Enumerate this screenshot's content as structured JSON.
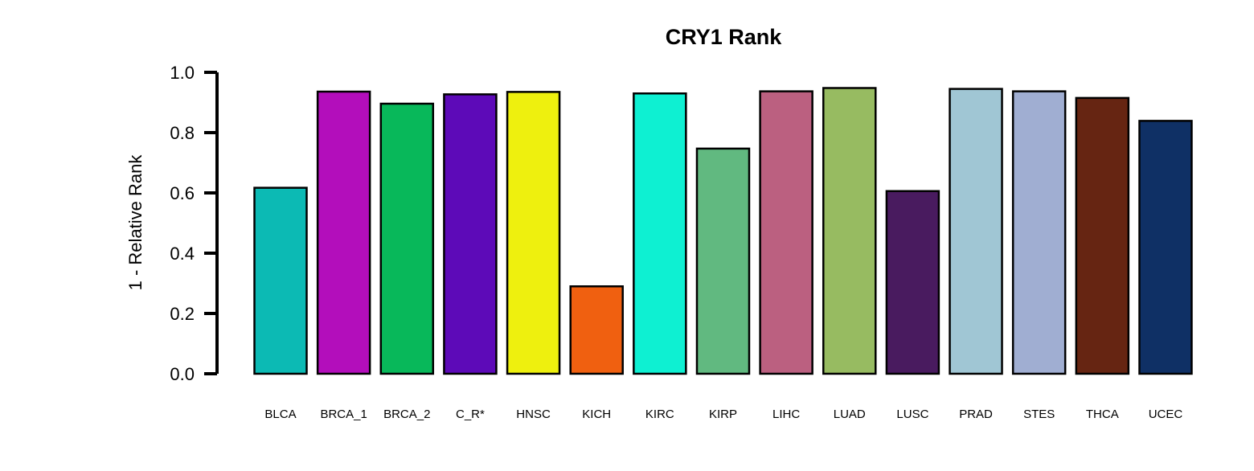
{
  "chart_data": {
    "type": "bar",
    "title": "CRY1 Rank",
    "xlabel": "",
    "ylabel": "1 - Relative Rank",
    "ylim": [
      0,
      1
    ],
    "yticks": [
      "0.0",
      "0.2",
      "0.4",
      "0.6",
      "0.8",
      "1.0"
    ],
    "categories": [
      "BLCA",
      "BRCA_1",
      "BRCA_2",
      "C_R*",
      "HNSC",
      "KICH",
      "KIRC",
      "KIRP",
      "LIHC",
      "LUAD",
      "LUSC",
      "PRAD",
      "STES",
      "THCA",
      "UCEC"
    ],
    "values": [
      0.617,
      0.936,
      0.896,
      0.927,
      0.935,
      0.29,
      0.93,
      0.747,
      0.937,
      0.948,
      0.606,
      0.945,
      0.937,
      0.915,
      0.839
    ],
    "colors": [
      "#0CBAB4",
      "#B30EBB",
      "#08B85A",
      "#5D0AB8",
      "#EEF00E",
      "#F06010",
      "#0EF0D2",
      "#61B980",
      "#BB6080",
      "#97BB61",
      "#491B5F",
      "#A0C6D4",
      "#A0AED2",
      "#662512",
      "#0F3065"
    ],
    "grid": false,
    "legend": "none"
  }
}
